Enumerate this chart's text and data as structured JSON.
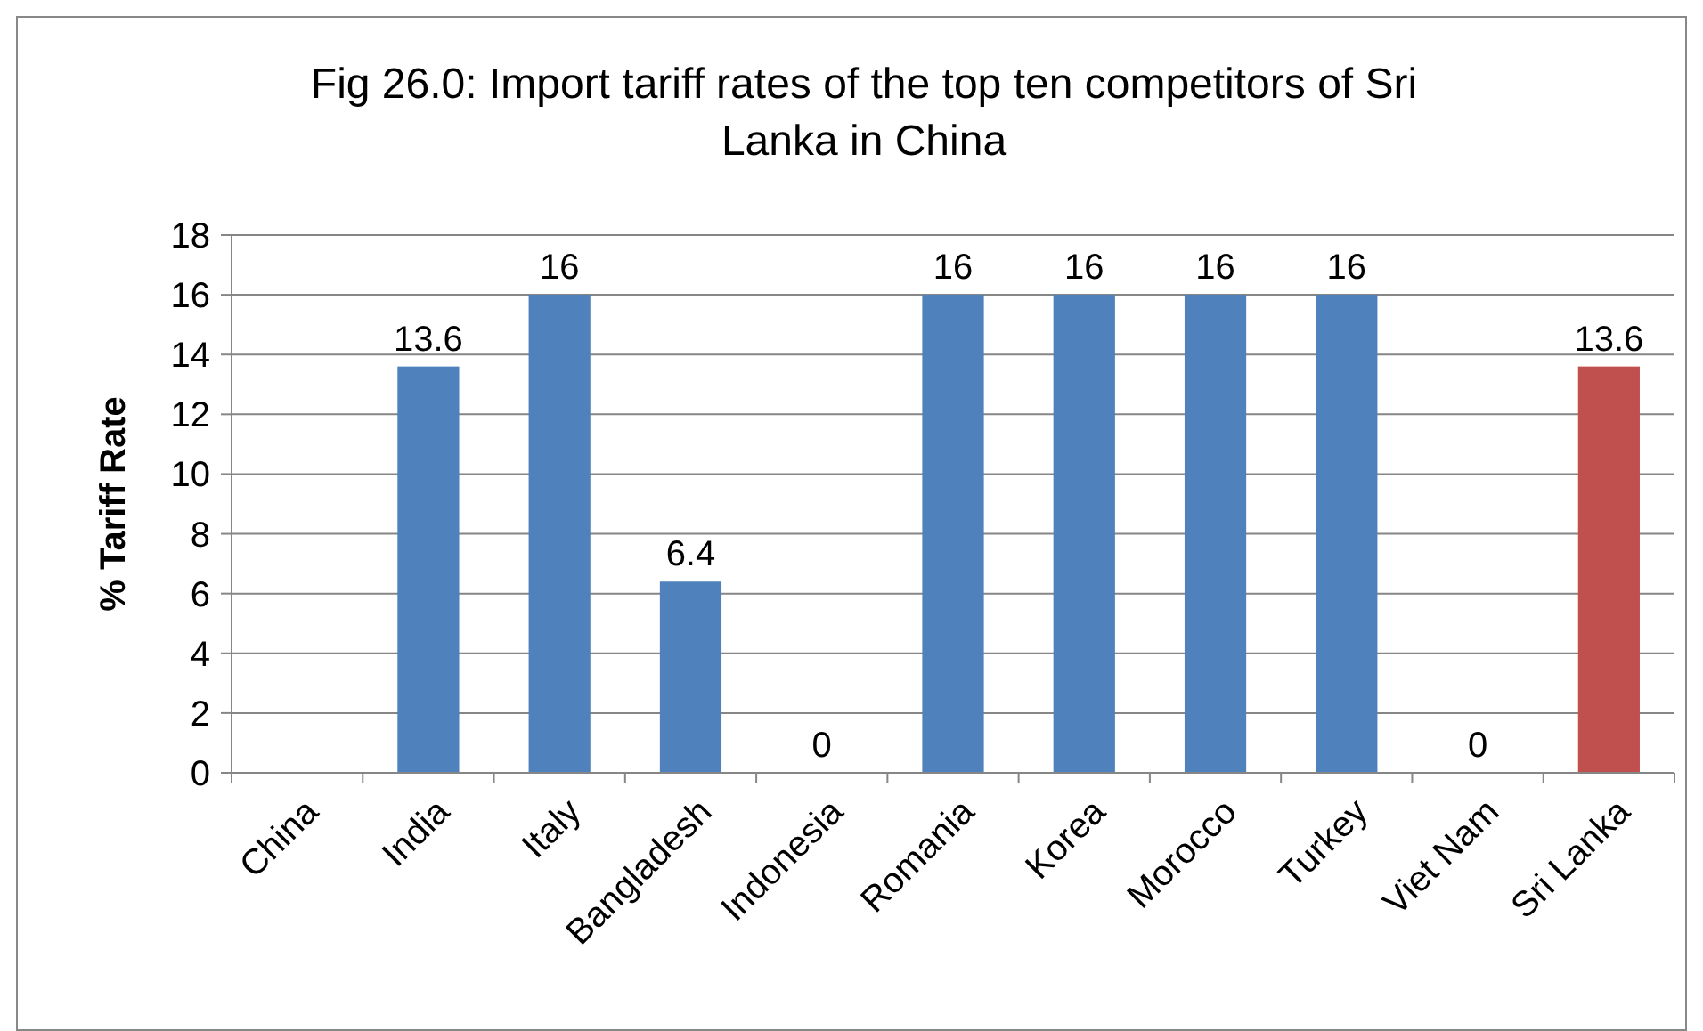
{
  "chart_data": {
    "type": "bar",
    "title": "Fig 26.0: Import tariff rates of the top ten competitors of Sri Lanka in China",
    "ylabel": "% Tariff Rate",
    "categories": [
      "China",
      "India",
      "Italy",
      "Bangladesh",
      "Indonesia",
      "Romania",
      "Korea",
      "Morocco",
      "Turkey",
      "Viet Nam",
      "Sri Lanka"
    ],
    "values": [
      null,
      13.6,
      16,
      6.4,
      0,
      16,
      16,
      16,
      16,
      0,
      13.6
    ],
    "colors": [
      null,
      "#4f81bd",
      "#4f81bd",
      "#4f81bd",
      "#4f81bd",
      "#4f81bd",
      "#4f81bd",
      "#4f81bd",
      "#4f81bd",
      "#4f81bd",
      "#c0504d"
    ],
    "ylim": [
      0,
      18
    ],
    "yticks": [
      0,
      2,
      4,
      6,
      8,
      10,
      12,
      14,
      16,
      18
    ],
    "grid": "y",
    "data_labels": true
  }
}
